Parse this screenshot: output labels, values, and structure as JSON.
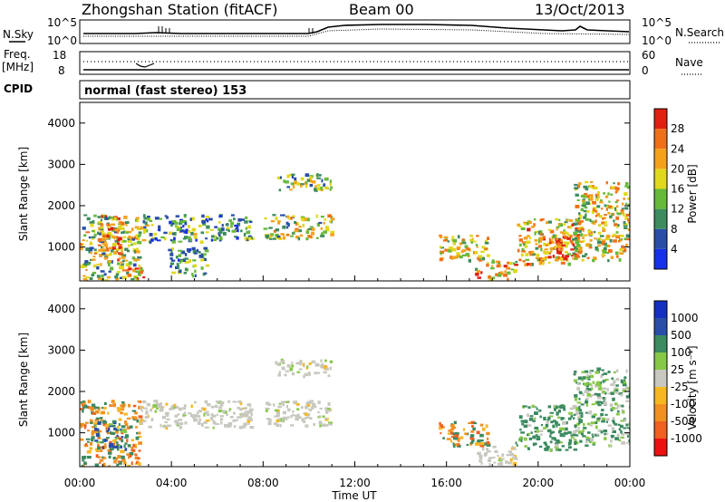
{
  "header": {
    "station": "Zhongshan Station (fitACF)",
    "beam": "Beam 00",
    "date": "13/Oct/2013"
  },
  "noise_panel": {
    "left_label": "N.Sky",
    "right_label": "N.Search",
    "left_ticks": [
      "10^5",
      "10^0"
    ],
    "right_ticks": [
      "10^5",
      "10^0"
    ]
  },
  "freq_panel": {
    "left_label_top": "Freq.",
    "left_label_unit": "[MHz]",
    "right_label": "Nave",
    "left_ticks": [
      "18",
      "8"
    ],
    "right_ticks": [
      "60",
      "0"
    ]
  },
  "cpid": {
    "label": "CPID",
    "value": "normal (fast stereo) 153"
  },
  "colors": {
    "scale_power": [
      "#1530e8",
      "#2a4ea8",
      "#3d8b5f",
      "#66b93b",
      "#e0d81c",
      "#f5a21b",
      "#f07018",
      "#e02010"
    ],
    "scale_velocity": [
      "#ee1111",
      "#f06020",
      "#f09020",
      "#f6b820",
      "#c8c8c0",
      "#88c848",
      "#3b8a60",
      "#2a4ea8",
      "#1530c0"
    ]
  },
  "chart_data": [
    {
      "type": "heatmap",
      "name_ref": "power-panel",
      "ylabel": "Slant Range [km]",
      "ylim": [
        180,
        4500
      ],
      "xlim": [
        0,
        24
      ],
      "y_ticks": [
        "1000",
        "2000",
        "3000",
        "4000"
      ],
      "y_tick_values": [
        1000,
        2000,
        3000,
        4000
      ],
      "colorbar_label": "Power [dB]",
      "colorbar_ticks": [
        "4",
        "8",
        "12",
        "16",
        "20",
        "24",
        "28"
      ],
      "regions": [
        {
          "t0": 0.0,
          "t1": 2.6,
          "r0": 200,
          "r1": 1800,
          "level": 0.5
        },
        {
          "t0": 0.9,
          "t1": 1.8,
          "r0": 700,
          "r1": 1800,
          "level": 0.8
        },
        {
          "t0": 2.0,
          "t1": 2.8,
          "r0": 250,
          "r1": 600,
          "level": 0.7
        },
        {
          "t0": 2.6,
          "t1": 7.5,
          "r0": 1150,
          "r1": 1800,
          "level": 0.35
        },
        {
          "t0": 3.8,
          "t1": 5.5,
          "r0": 300,
          "r1": 1000,
          "level": 0.3
        },
        {
          "t0": 8.0,
          "t1": 11.0,
          "r0": 1200,
          "r1": 1800,
          "level": 0.5
        },
        {
          "t0": 8.5,
          "t1": 11.0,
          "r0": 2400,
          "r1": 2800,
          "level": 0.45
        },
        {
          "t0": 15.6,
          "t1": 17.8,
          "r0": 700,
          "r1": 1300,
          "level": 0.55
        },
        {
          "t0": 17.2,
          "t1": 19.0,
          "r0": 250,
          "r1": 700,
          "level": 0.65
        },
        {
          "t0": 19.0,
          "t1": 21.8,
          "r0": 600,
          "r1": 1700,
          "level": 0.6
        },
        {
          "t0": 20.2,
          "t1": 21.7,
          "r0": 700,
          "r1": 1400,
          "level": 0.85
        },
        {
          "t0": 21.5,
          "t1": 24.0,
          "r0": 700,
          "r1": 2600,
          "level": 0.55
        }
      ]
    },
    {
      "type": "heatmap",
      "name_ref": "velocity-panel",
      "ylabel": "Slant Range [km]",
      "ylim": [
        180,
        4500
      ],
      "xlim": [
        0,
        24
      ],
      "x_ticks": [
        "00:00",
        "04:00",
        "08:00",
        "12:00",
        "16:00",
        "20:00",
        "00:00"
      ],
      "x_tick_values": [
        0,
        4,
        8,
        12,
        16,
        20,
        24
      ],
      "xlabel": "Time UT",
      "y_ticks": [
        "1000",
        "2000",
        "3000",
        "4000"
      ],
      "y_tick_values": [
        1000,
        2000,
        3000,
        4000
      ],
      "colorbar_label": "Velocity [m s⁻¹]",
      "colorbar_ticks": [
        "1000",
        "500",
        "100",
        "25",
        "-25",
        "-100",
        "-500",
        "-1000"
      ],
      "regions": [
        {
          "t0": 0.0,
          "t1": 2.6,
          "r0": 200,
          "r1": 1800,
          "class": "orange-green"
        },
        {
          "t0": 0.6,
          "t1": 2.0,
          "r0": 600,
          "r1": 1300,
          "class": "blue-green"
        },
        {
          "t0": 2.6,
          "t1": 7.5,
          "r0": 1150,
          "r1": 1800,
          "class": "grey"
        },
        {
          "t0": 8.0,
          "t1": 11.0,
          "r0": 1200,
          "r1": 1800,
          "class": "grey"
        },
        {
          "t0": 8.5,
          "t1": 11.0,
          "r0": 2400,
          "r1": 2800,
          "class": "grey"
        },
        {
          "t0": 15.6,
          "t1": 17.8,
          "r0": 700,
          "r1": 1300,
          "class": "orange-green"
        },
        {
          "t0": 17.2,
          "t1": 19.0,
          "r0": 250,
          "r1": 700,
          "class": "grey"
        },
        {
          "t0": 19.0,
          "t1": 21.8,
          "r0": 600,
          "r1": 1700,
          "class": "green"
        },
        {
          "t0": 21.5,
          "t1": 24.0,
          "r0": 700,
          "r1": 2600,
          "class": "green-grey"
        }
      ]
    }
  ]
}
